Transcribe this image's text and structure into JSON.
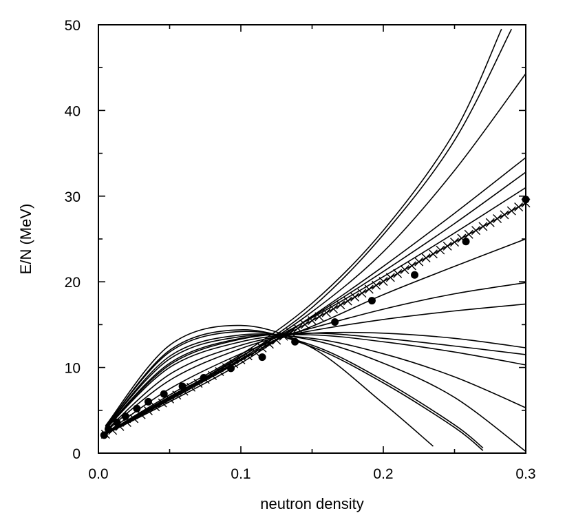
{
  "chart_data": {
    "type": "line",
    "title": "",
    "xlabel": "neutron density",
    "ylabel": "E/N (MeV)",
    "xlim": [
      0.0,
      0.3
    ],
    "ylim": [
      0,
      50
    ],
    "xticks": [
      0.0,
      0.1,
      0.2,
      0.3
    ],
    "xtick_labels": [
      "0.0",
      "0.1",
      "0.2",
      "0.3"
    ],
    "yticks": [
      0,
      10,
      20,
      30,
      40,
      50
    ],
    "ytick_labels": [
      "0",
      "10",
      "20",
      "30",
      "40",
      "50"
    ],
    "grid": false,
    "legend": "none",
    "curves": [
      {
        "x": [
          0.005,
          0.05,
          0.1,
          0.15,
          0.2,
          0.25,
          0.283
        ],
        "y": [
          2.3,
          6.8,
          11.5,
          17.5,
          26.0,
          37.5,
          49.5
        ]
      },
      {
        "x": [
          0.005,
          0.05,
          0.1,
          0.15,
          0.2,
          0.25,
          0.29
        ],
        "y": [
          2.3,
          6.6,
          11.2,
          17.0,
          25.5,
          36.5,
          49.5
        ]
      },
      {
        "x": [
          0.005,
          0.05,
          0.1,
          0.15,
          0.2,
          0.25,
          0.3
        ],
        "y": [
          2.3,
          6.5,
          11.0,
          16.5,
          23.5,
          33.0,
          44.3
        ]
      },
      {
        "x": [
          0.005,
          0.05,
          0.1,
          0.15,
          0.2,
          0.25,
          0.3
        ],
        "y": [
          2.2,
          6.0,
          10.5,
          16.0,
          21.8,
          28.0,
          34.5
        ]
      },
      {
        "x": [
          0.005,
          0.05,
          0.1,
          0.15,
          0.2,
          0.25,
          0.3
        ],
        "y": [
          2.2,
          6.2,
          10.8,
          15.9,
          21.2,
          26.8,
          32.8
        ]
      },
      {
        "x": [
          0.005,
          0.05,
          0.1,
          0.15,
          0.2,
          0.25,
          0.3
        ],
        "y": [
          2.2,
          6.4,
          11.3,
          15.8,
          20.6,
          25.7,
          31.0
        ]
      },
      {
        "x": [
          0.005,
          0.05,
          0.1,
          0.15,
          0.2,
          0.25,
          0.3
        ],
        "y": [
          2.3,
          7.5,
          11.6,
          14.8,
          18.5,
          21.8,
          25.0
        ]
      },
      {
        "x": [
          0.005,
          0.05,
          0.1,
          0.15,
          0.2,
          0.25,
          0.3
        ],
        "y": [
          2.5,
          8.5,
          12.2,
          14.6,
          16.8,
          18.6,
          19.9
        ]
      },
      {
        "x": [
          0.005,
          0.05,
          0.1,
          0.15,
          0.2,
          0.25,
          0.3
        ],
        "y": [
          2.6,
          9.2,
          12.6,
          14.3,
          15.6,
          16.6,
          17.4
        ]
      },
      {
        "x": [
          0.005,
          0.05,
          0.1,
          0.15,
          0.2,
          0.25,
          0.3
        ],
        "y": [
          2.8,
          10.0,
          13.0,
          14.0,
          14.0,
          13.4,
          12.3
        ]
      },
      {
        "x": [
          0.005,
          0.05,
          0.1,
          0.15,
          0.2,
          0.25,
          0.3
        ],
        "y": [
          2.8,
          10.3,
          13.3,
          14.0,
          13.4,
          12.5,
          11.5
        ]
      },
      {
        "x": [
          0.005,
          0.05,
          0.1,
          0.15,
          0.2,
          0.25,
          0.3
        ],
        "y": [
          2.9,
          10.5,
          13.4,
          13.8,
          13.0,
          11.8,
          10.3
        ]
      },
      {
        "x": [
          0.005,
          0.05,
          0.1,
          0.15,
          0.2,
          0.25,
          0.3
        ],
        "y": [
          3.0,
          11.0,
          13.6,
          13.4,
          11.6,
          8.9,
          5.3
        ]
      },
      {
        "x": [
          0.005,
          0.05,
          0.1,
          0.15,
          0.2,
          0.25,
          0.3
        ],
        "y": [
          3.0,
          11.3,
          13.8,
          13.2,
          10.5,
          6.5,
          0.2
        ]
      },
      {
        "x": [
          0.005,
          0.05,
          0.1,
          0.15,
          0.2,
          0.25,
          0.27
        ],
        "y": [
          3.1,
          11.8,
          14.2,
          12.6,
          8.5,
          3.3,
          0.6
        ]
      },
      {
        "x": [
          0.005,
          0.05,
          0.1,
          0.15,
          0.2,
          0.25,
          0.27
        ],
        "y": [
          3.1,
          12.0,
          14.4,
          12.4,
          8.2,
          3.0,
          0.3
        ]
      },
      {
        "x": [
          0.005,
          0.05,
          0.1,
          0.15,
          0.2,
          0.235
        ],
        "y": [
          3.2,
          12.6,
          14.9,
          12.3,
          5.8,
          0.8
        ]
      }
    ],
    "crosses": {
      "x_start": 0.005,
      "x_end": 0.3,
      "count": 60,
      "y_start": 2.2,
      "y_end": 29.2
    },
    "points": {
      "x": [
        0.004,
        0.007,
        0.013,
        0.019,
        0.027,
        0.035,
        0.046,
        0.059,
        0.074,
        0.093,
        0.115,
        0.138,
        0.166,
        0.192,
        0.222,
        0.258,
        0.3
      ],
      "y": [
        2.1,
        2.8,
        3.6,
        4.3,
        5.2,
        6.0,
        6.9,
        7.8,
        8.8,
        9.9,
        11.2,
        13.0,
        15.3,
        17.8,
        20.8,
        24.7,
        29.6
      ]
    }
  }
}
